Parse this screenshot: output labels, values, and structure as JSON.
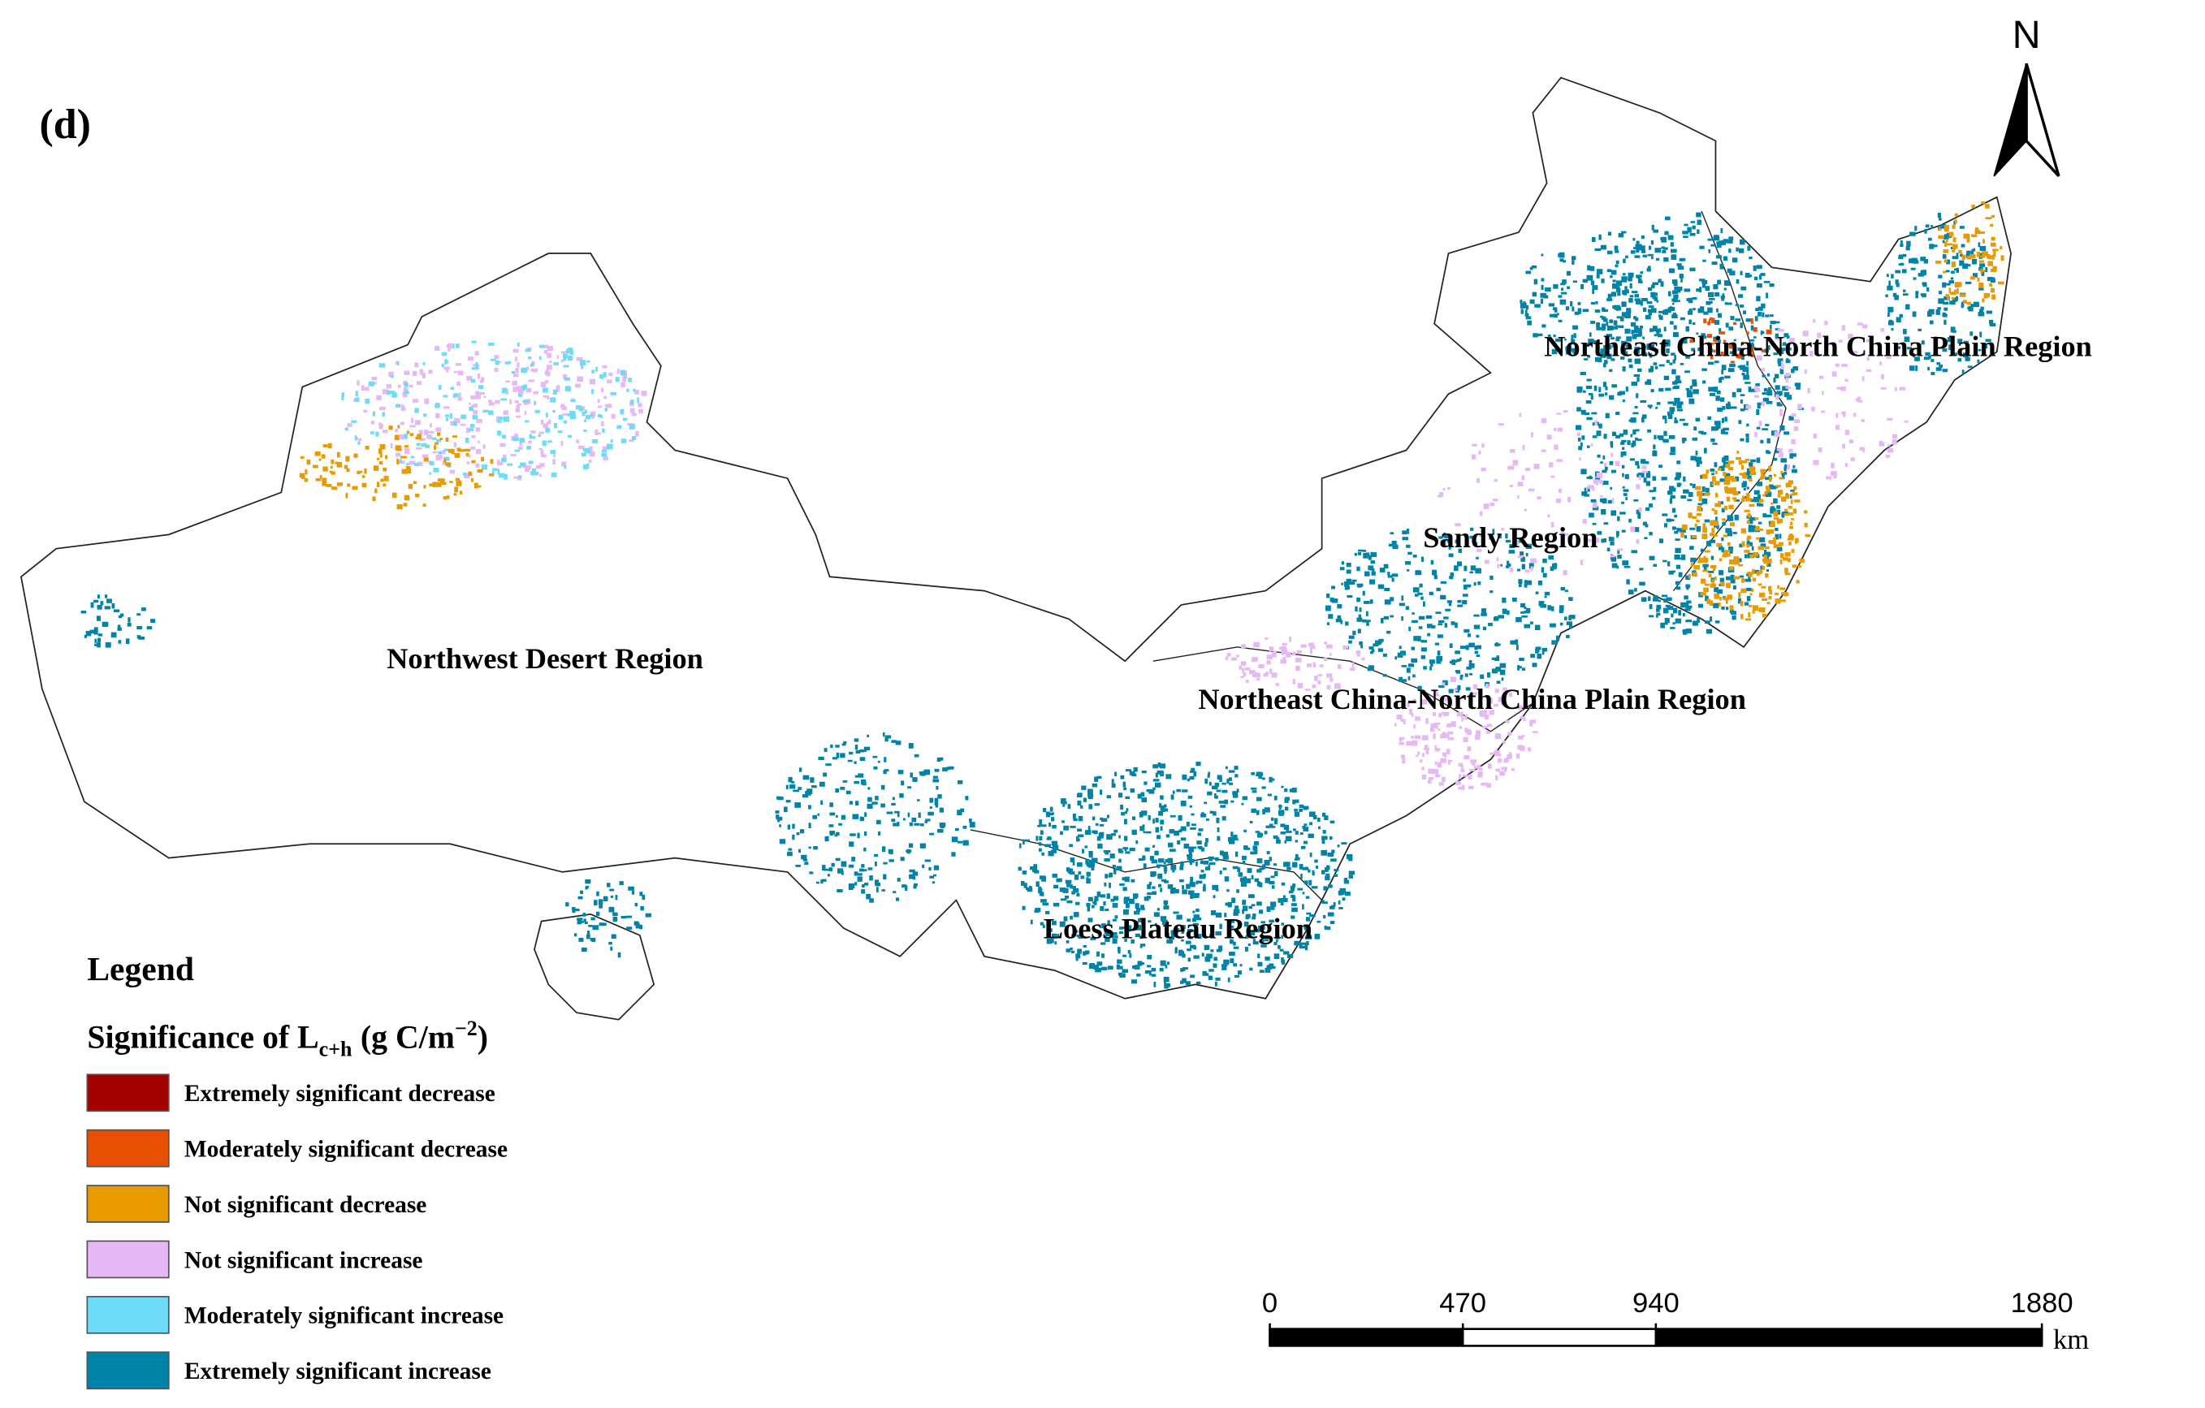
{
  "panel_label": "(d)",
  "north_arrow": "N",
  "regions": [
    "Northeast China-North China Plain Region",
    "Sandy Region",
    "Northwest Desert Region",
    "Northeast China-North China Plain Region",
    "Loess Plateau Region"
  ],
  "legend": {
    "title": "Legend",
    "subtitle": {
      "prefix": "Significance of L",
      "subscript": "c+h",
      "unit": "(g C/m",
      "superscript": "−2",
      "suffix": ")"
    },
    "items": [
      {
        "name": "Extremely significant decrease",
        "color": "#a50000"
      },
      {
        "name": "Moderately significant decrease",
        "color": "#e84f00"
      },
      {
        "name": "Not significant decrease",
        "color": "#e89a00"
      },
      {
        "name": "Not significant increase",
        "color": "#e6b8f5"
      },
      {
        "name": "Moderately significant increase",
        "color": "#6edcf8"
      },
      {
        "name": "Extremely significant increase",
        "color": "#0083a8"
      }
    ]
  },
  "scale_bar": {
    "ticks": [
      0,
      470,
      940,
      1880
    ],
    "unit": "km"
  }
}
